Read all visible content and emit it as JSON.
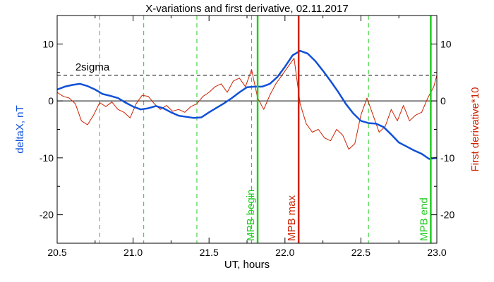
{
  "chart_data": {
    "type": "line",
    "title": "X-variations and first derivative, 02.11.2017",
    "xlabel": "UT, hours",
    "ylabel_left": "deltaX, nT",
    "ylabel_right": "First derivative*10",
    "xlim": [
      20.5,
      23.0
    ],
    "ylim": [
      -25,
      15
    ],
    "xticks": [
      "20.5",
      "21.0",
      "21.5",
      "22.0",
      "22.5",
      "23.0"
    ],
    "yticks": [
      "10",
      "0",
      "-10",
      "-20"
    ],
    "colors": {
      "deltaX": "#1050d8",
      "derivative": "#cc2200",
      "mpb_boundary": "#22cc22",
      "mpb_max": "#cc2200",
      "reference": "#000000"
    },
    "sigma_line": {
      "label": "2sigma",
      "value": 4.5
    },
    "zero_line": 0,
    "dashed_markers_x": [
      20.78,
      21.07,
      21.42,
      21.78,
      22.55
    ],
    "vertical_markers": [
      {
        "label": "MPB begin",
        "x": 21.82,
        "color": "#22cc22"
      },
      {
        "label": "MPB max",
        "x": 22.09,
        "color": "#cc2200"
      },
      {
        "label": "MPB end",
        "x": 22.96,
        "color": "#22cc22"
      }
    ],
    "series": [
      {
        "name": "deltaX, nT",
        "color": "#1050d8",
        "x": [
          20.5,
          20.55,
          20.6,
          20.65,
          20.7,
          20.75,
          20.8,
          20.85,
          20.9,
          20.95,
          21.0,
          21.05,
          21.1,
          21.15,
          21.2,
          21.25,
          21.3,
          21.35,
          21.4,
          21.45,
          21.5,
          21.55,
          21.6,
          21.65,
          21.7,
          21.75,
          21.8,
          21.85,
          21.9,
          21.95,
          22.0,
          22.05,
          22.1,
          22.15,
          22.2,
          22.25,
          22.3,
          22.35,
          22.4,
          22.45,
          22.5,
          22.55,
          22.6,
          22.65,
          22.7,
          22.75,
          22.8,
          22.85,
          22.9,
          22.95,
          23.0
        ],
        "y": [
          2.0,
          2.5,
          2.8,
          3.0,
          2.6,
          2.0,
          1.2,
          0.9,
          0.5,
          -0.3,
          -1.0,
          -1.5,
          -1.3,
          -0.9,
          -1.3,
          -2.0,
          -2.6,
          -2.8,
          -3.0,
          -2.9,
          -2.0,
          -1.2,
          -0.4,
          0.5,
          1.5,
          2.4,
          2.5,
          2.5,
          3.0,
          4.2,
          6.0,
          8.0,
          8.8,
          8.3,
          7.0,
          5.3,
          3.5,
          1.6,
          -0.5,
          -2.2,
          -3.5,
          -3.9,
          -4.0,
          -4.6,
          -5.9,
          -7.3,
          -8.0,
          -8.7,
          -9.3,
          -10.2,
          -10.0
        ]
      },
      {
        "name": "First derivative*10",
        "color": "#cc2200",
        "x": [
          20.5,
          20.54,
          20.58,
          20.62,
          20.66,
          20.7,
          20.74,
          20.78,
          20.82,
          20.86,
          20.9,
          20.94,
          20.98,
          21.02,
          21.06,
          21.1,
          21.14,
          21.18,
          21.22,
          21.26,
          21.3,
          21.34,
          21.38,
          21.42,
          21.46,
          21.5,
          21.54,
          21.58,
          21.62,
          21.66,
          21.7,
          21.74,
          21.78,
          21.82,
          21.86,
          21.9,
          21.94,
          21.98,
          22.02,
          22.06,
          22.1,
          22.14,
          22.18,
          22.22,
          22.26,
          22.3,
          22.34,
          22.38,
          22.42,
          22.46,
          22.5,
          22.54,
          22.58,
          22.62,
          22.66,
          22.7,
          22.74,
          22.78,
          22.82,
          22.86,
          22.9,
          22.94,
          22.98,
          23.0
        ],
        "y": [
          1.5,
          0.8,
          0.5,
          -0.5,
          -3.5,
          -4.2,
          -2.5,
          -0.3,
          -1.0,
          -0.2,
          -1.5,
          -2.0,
          -3.0,
          -0.5,
          1.0,
          0.8,
          -0.5,
          -1.5,
          -0.8,
          -1.8,
          -1.5,
          -2.0,
          -1.0,
          -0.5,
          0.8,
          1.5,
          2.5,
          3.0,
          1.5,
          3.5,
          4.0,
          2.5,
          5.5,
          0.5,
          -1.5,
          1.0,
          3.0,
          4.5,
          6.0,
          7.5,
          -0.5,
          -4.0,
          -5.5,
          -5.0,
          -6.5,
          -7.0,
          -5.0,
          -6.0,
          -8.5,
          -7.5,
          -2.5,
          0.5,
          -2.5,
          -5.5,
          -4.5,
          -1.5,
          -3.5,
          -0.8,
          -3.5,
          -2.5,
          -2.0,
          0.5,
          2.5,
          4.5
        ]
      }
    ]
  }
}
